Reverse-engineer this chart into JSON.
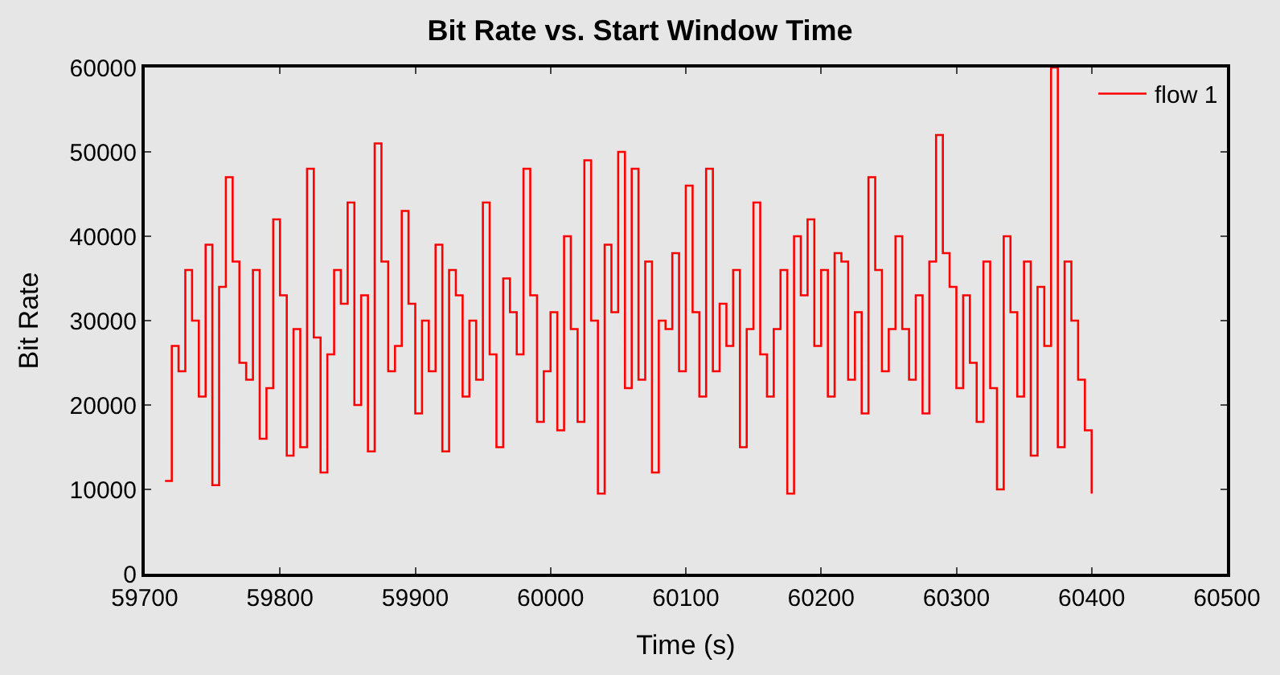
{
  "chart_data": {
    "type": "step",
    "title": "Bit Rate vs. Start Window Time",
    "xlabel": "Time (s)",
    "ylabel": "Bit Rate",
    "xlim": [
      59700,
      60500
    ],
    "ylim": [
      0,
      60000
    ],
    "xticks": [
      59700,
      59800,
      59900,
      60000,
      60100,
      60200,
      60300,
      60400,
      60500
    ],
    "yticks": [
      0,
      10000,
      20000,
      30000,
      40000,
      50000,
      60000
    ],
    "legend": "top right",
    "grid": false,
    "marker": "none",
    "line_style": "solid",
    "x": [
      59715,
      59720,
      59725,
      59730,
      59735,
      59740,
      59745,
      59750,
      59755,
      59760,
      59765,
      59770,
      59775,
      59780,
      59785,
      59790,
      59795,
      59800,
      59805,
      59810,
      59815,
      59820,
      59825,
      59830,
      59835,
      59840,
      59845,
      59850,
      59855,
      59860,
      59865,
      59870,
      59875,
      59880,
      59885,
      59890,
      59895,
      59900,
      59905,
      59910,
      59915,
      59920,
      59925,
      59930,
      59935,
      59940,
      59945,
      59950,
      59955,
      59960,
      59965,
      59970,
      59975,
      59980,
      59985,
      59990,
      59995,
      60000,
      60005,
      60010,
      60015,
      60020,
      60025,
      60030,
      60035,
      60040,
      60045,
      60050,
      60055,
      60060,
      60065,
      60070,
      60075,
      60080,
      60085,
      60090,
      60095,
      60100,
      60105,
      60110,
      60115,
      60120,
      60125,
      60130,
      60135,
      60140,
      60145,
      60150,
      60155,
      60160,
      60165,
      60170,
      60175,
      60180,
      60185,
      60190,
      60195,
      60200,
      60205,
      60210,
      60215,
      60220,
      60225,
      60230,
      60235,
      60240,
      60245,
      60250,
      60255,
      60260,
      60265,
      60270,
      60275,
      60280,
      60285,
      60290,
      60295,
      60300,
      60305,
      60310,
      60315,
      60320,
      60325,
      60330,
      60335,
      60340,
      60345,
      60350,
      60355,
      60360,
      60365,
      60370,
      60375,
      60380,
      60385,
      60390,
      60395,
      60400
    ],
    "series": [
      {
        "name": "flow 1",
        "color": "#ff0000",
        "values": [
          11000,
          27000,
          24000,
          36000,
          30000,
          21000,
          39000,
          10500,
          34000,
          47000,
          37000,
          25000,
          23000,
          36000,
          16000,
          22000,
          42000,
          33000,
          14000,
          29000,
          15000,
          48000,
          28000,
          12000,
          26000,
          36000,
          32000,
          44000,
          20000,
          33000,
          14500,
          51000,
          37000,
          24000,
          27000,
          43000,
          32000,
          19000,
          30000,
          24000,
          39000,
          14500,
          36000,
          33000,
          21000,
          30000,
          23000,
          44000,
          26000,
          15000,
          35000,
          31000,
          26000,
          48000,
          33000,
          18000,
          24000,
          31000,
          17000,
          40000,
          29000,
          18000,
          49000,
          30000,
          9500,
          39000,
          31000,
          50000,
          22000,
          48000,
          23000,
          37000,
          12000,
          30000,
          29000,
          38000,
          24000,
          46000,
          31000,
          21000,
          48000,
          24000,
          32000,
          27000,
          36000,
          15000,
          29000,
          44000,
          26000,
          21000,
          29000,
          36000,
          9500,
          40000,
          33000,
          42000,
          27000,
          36000,
          21000,
          38000,
          37000,
          23000,
          31000,
          19000,
          47000,
          36000,
          24000,
          29000,
          40000,
          29000,
          23000,
          33000,
          19000,
          37000,
          52000,
          38000,
          34000,
          22000,
          33000,
          25000,
          18000,
          37000,
          22000,
          10000,
          40000,
          31000,
          21000,
          37000,
          14000,
          34000,
          27000,
          60000,
          15000,
          37000,
          30000,
          23000,
          17000,
          9500
        ]
      }
    ]
  }
}
